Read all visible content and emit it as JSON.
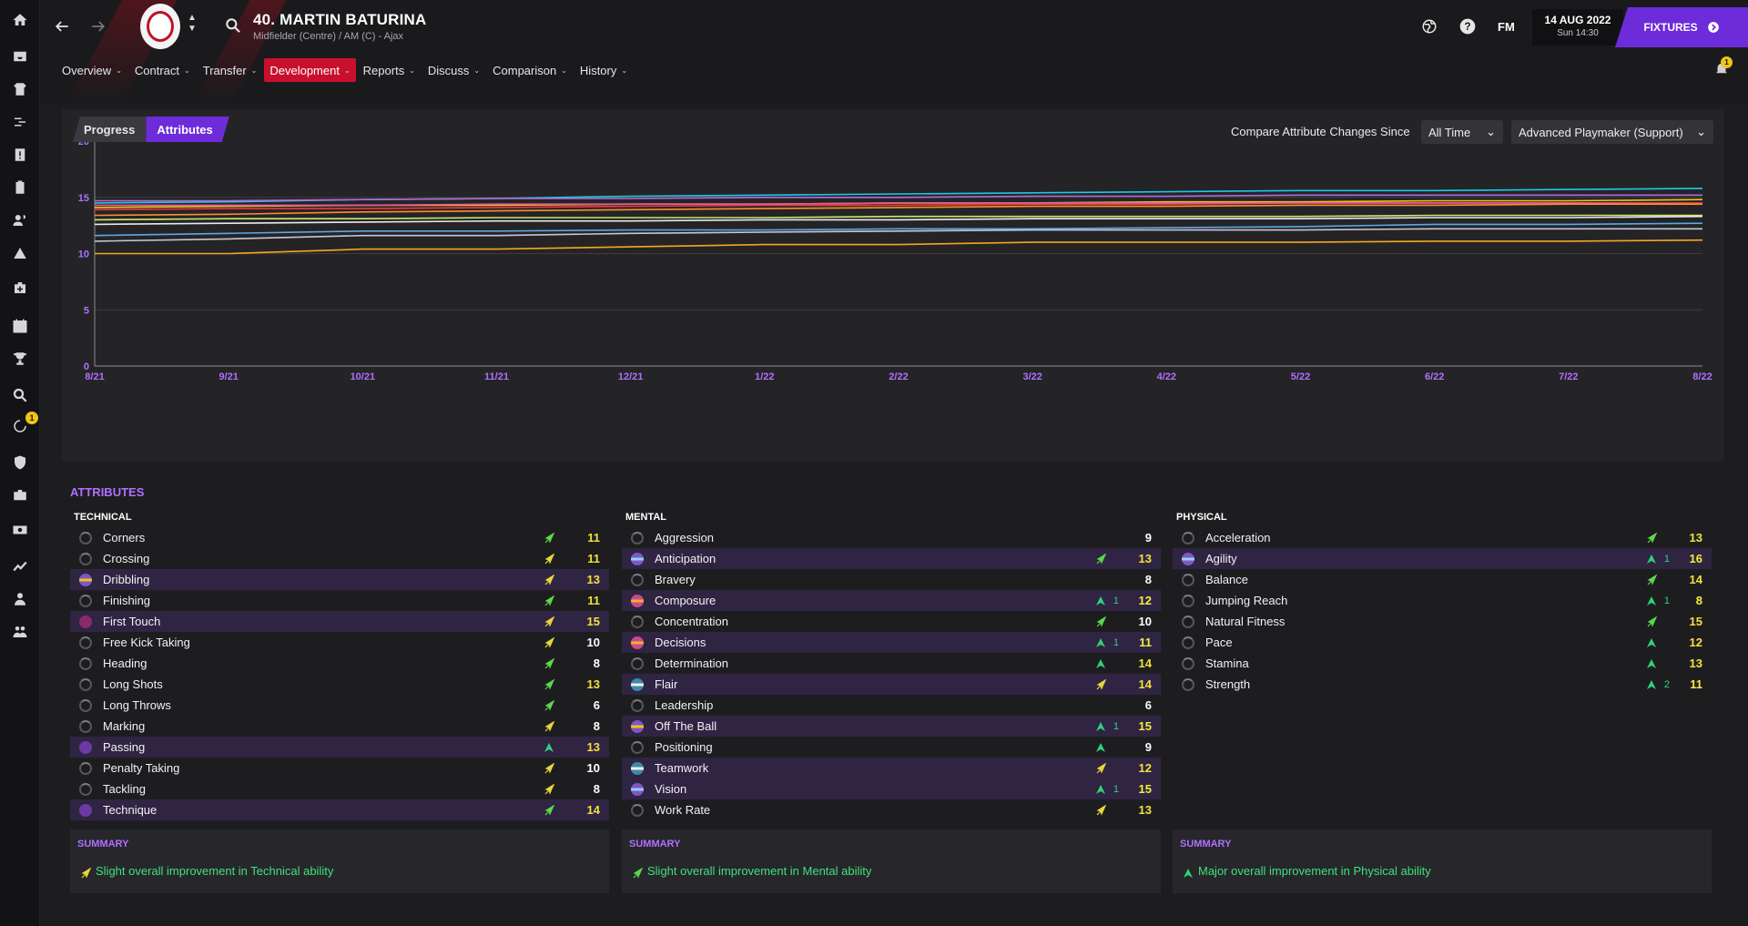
{
  "header": {
    "player_name": "40. MARTIN BATURINA",
    "player_subtitle": "Midfielder (Centre) / AM (C) - Ajax",
    "logo_label": "FM",
    "date": "14 AUG 2022",
    "time": "Sun 14:30",
    "fixtures_label": "FIXTURES",
    "notification_count": "1"
  },
  "sidebar": {
    "badge_count": "1"
  },
  "nav": [
    {
      "label": "Overview",
      "active": false
    },
    {
      "label": "Contract",
      "active": false
    },
    {
      "label": "Transfer",
      "active": false
    },
    {
      "label": "Development",
      "active": true
    },
    {
      "label": "Reports",
      "active": false
    },
    {
      "label": "Discuss",
      "active": false
    },
    {
      "label": "Comparison",
      "active": false
    },
    {
      "label": "History",
      "active": false
    }
  ],
  "panel": {
    "tab_progress": "Progress",
    "tab_attributes": "Attributes",
    "compare_label": "Compare Attribute Changes Since",
    "compare_value": "All Time",
    "role_value": "Advanced Playmaker (Support)"
  },
  "chart_data": {
    "type": "line",
    "x": [
      "8/21",
      "9/21",
      "10/21",
      "11/21",
      "12/21",
      "1/22",
      "2/22",
      "3/22",
      "4/22",
      "5/22",
      "6/22",
      "7/22",
      "8/22"
    ],
    "ylim": [
      0,
      20
    ],
    "yticks": [
      0,
      5,
      10,
      15,
      20
    ],
    "grid": true,
    "series": [
      {
        "color": "#1ec8e6",
        "values": [
          14.5,
          14.6,
          14.8,
          14.9,
          15.1,
          15.2,
          15.3,
          15.4,
          15.5,
          15.6,
          15.6,
          15.7,
          15.8
        ]
      },
      {
        "color": "#b36ad8",
        "values": [
          14.7,
          14.7,
          14.8,
          14.9,
          14.9,
          15.0,
          15.0,
          15.1,
          15.1,
          15.2,
          15.2,
          15.2,
          15.2
        ]
      },
      {
        "color": "#f0c419",
        "values": [
          14.1,
          14.2,
          14.3,
          14.3,
          14.4,
          14.4,
          14.5,
          14.5,
          14.6,
          14.6,
          14.7,
          14.7,
          14.8
        ]
      },
      {
        "color": "#e83c3c",
        "values": [
          13.9,
          14.0,
          14.0,
          14.1,
          14.2,
          14.3,
          14.3,
          14.4,
          14.4,
          14.5,
          14.5,
          14.5,
          14.5
        ]
      },
      {
        "color": "#e8589c",
        "values": [
          14.3,
          14.3,
          14.3,
          14.4,
          14.4,
          14.4,
          14.5,
          14.5,
          14.5,
          14.5,
          14.5,
          14.5,
          14.4
        ]
      },
      {
        "color": "#ff8c2e",
        "values": [
          13.4,
          13.5,
          13.7,
          13.8,
          13.9,
          14.0,
          14.1,
          14.2,
          14.2,
          14.3,
          14.3,
          14.4,
          14.4
        ]
      },
      {
        "color": "#c9e86b",
        "values": [
          13.0,
          13.1,
          13.1,
          13.2,
          13.2,
          13.2,
          13.3,
          13.3,
          13.3,
          13.3,
          13.4,
          13.4,
          13.4
        ]
      },
      {
        "color": "#e9e9ef",
        "values": [
          12.6,
          12.7,
          12.8,
          12.9,
          12.9,
          13.0,
          13.0,
          13.1,
          13.1,
          13.1,
          13.2,
          13.2,
          13.3
        ]
      },
      {
        "color": "#5aa8e6",
        "values": [
          11.6,
          11.8,
          12.0,
          12.0,
          12.1,
          12.1,
          12.2,
          12.2,
          12.3,
          12.4,
          12.6,
          12.6,
          12.7
        ]
      },
      {
        "color": "#c7c7d6",
        "values": [
          11.1,
          11.3,
          11.6,
          11.6,
          11.8,
          11.9,
          12.0,
          12.1,
          12.1,
          12.1,
          12.2,
          12.2,
          12.2
        ]
      },
      {
        "color": "#f5a623",
        "values": [
          10.0,
          10.0,
          10.4,
          10.4,
          10.6,
          10.8,
          10.8,
          11.0,
          11.0,
          11.0,
          11.1,
          11.1,
          11.2
        ]
      }
    ]
  },
  "attributes": {
    "title": "ATTRIBUTES",
    "columns": [
      {
        "heading": "TECHNICAL",
        "rows": [
          {
            "name": "Corners",
            "value": "11",
            "trend": "up-green",
            "change": "",
            "icon": "grey",
            "hl": false
          },
          {
            "name": "Crossing",
            "value": "11",
            "trend": "up-yellow",
            "change": "",
            "icon": "grey",
            "hl": false
          },
          {
            "name": "Dribbling",
            "value": "13",
            "trend": "up-yellow",
            "change": "",
            "icon": "striped",
            "hl": true
          },
          {
            "name": "Finishing",
            "value": "11",
            "trend": "up-green",
            "change": "",
            "icon": "grey",
            "hl": false
          },
          {
            "name": "First Touch",
            "value": "15",
            "trend": "up-yellow",
            "change": "",
            "icon": "mag",
            "hl": true
          },
          {
            "name": "Free Kick Taking",
            "value": "10",
            "trend": "up-yellow",
            "change": "",
            "icon": "grey",
            "hl": false
          },
          {
            "name": "Heading",
            "value": "8",
            "trend": "up-green",
            "change": "",
            "icon": "grey",
            "hl": false
          },
          {
            "name": "Long Shots",
            "value": "13",
            "trend": "up-green",
            "change": "",
            "icon": "grey",
            "hl": false
          },
          {
            "name": "Long Throws",
            "value": "6",
            "trend": "up-green",
            "change": "",
            "icon": "grey",
            "hl": false
          },
          {
            "name": "Marking",
            "value": "8",
            "trend": "up-yellow",
            "change": "",
            "icon": "grey",
            "hl": false
          },
          {
            "name": "Passing",
            "value": "13",
            "trend": "up-strong",
            "change": "",
            "icon": "purp",
            "hl": true
          },
          {
            "name": "Penalty Taking",
            "value": "10",
            "trend": "up-yellow",
            "change": "",
            "icon": "grey",
            "hl": false
          },
          {
            "name": "Tackling",
            "value": "8",
            "trend": "up-yellow",
            "change": "",
            "icon": "grey",
            "hl": false
          },
          {
            "name": "Technique",
            "value": "14",
            "trend": "up-green",
            "change": "",
            "icon": "purp",
            "hl": true
          }
        ],
        "summary_heading": "SUMMARY",
        "summary_text": "Slight overall improvement in Technical ability",
        "summary_trend": "up-yellow"
      },
      {
        "heading": "MENTAL",
        "rows": [
          {
            "name": "Aggression",
            "value": "9",
            "trend": "",
            "change": "",
            "icon": "grey",
            "hl": false
          },
          {
            "name": "Anticipation",
            "value": "13",
            "trend": "up-green",
            "change": "",
            "icon": "striped4",
            "hl": true
          },
          {
            "name": "Bravery",
            "value": "8",
            "trend": "",
            "change": "",
            "icon": "grey",
            "hl": false
          },
          {
            "name": "Composure",
            "value": "12",
            "trend": "up-strong",
            "change": "1",
            "icon": "striped2",
            "hl": true
          },
          {
            "name": "Concentration",
            "value": "10",
            "trend": "up-green",
            "change": "",
            "icon": "grey",
            "hl": false
          },
          {
            "name": "Decisions",
            "value": "11",
            "trend": "up-strong",
            "change": "1",
            "icon": "striped2",
            "hl": true
          },
          {
            "name": "Determination",
            "value": "14",
            "trend": "up-strong",
            "change": "",
            "icon": "grey",
            "hl": false
          },
          {
            "name": "Flair",
            "value": "14",
            "trend": "up-yellow",
            "change": "",
            "icon": "striped3",
            "hl": true
          },
          {
            "name": "Leadership",
            "value": "6",
            "trend": "",
            "change": "",
            "icon": "grey",
            "hl": false
          },
          {
            "name": "Off The Ball",
            "value": "15",
            "trend": "up-strong",
            "change": "1",
            "icon": "striped",
            "hl": true
          },
          {
            "name": "Positioning",
            "value": "9",
            "trend": "up-strong",
            "change": "",
            "icon": "grey",
            "hl": false
          },
          {
            "name": "Teamwork",
            "value": "12",
            "trend": "up-yellow",
            "change": "",
            "icon": "striped3",
            "hl": true
          },
          {
            "name": "Vision",
            "value": "15",
            "trend": "up-strong",
            "change": "1",
            "icon": "striped4",
            "hl": true
          },
          {
            "name": "Work Rate",
            "value": "13",
            "trend": "up-yellow",
            "change": "",
            "icon": "grey",
            "hl": false
          }
        ],
        "summary_heading": "SUMMARY",
        "summary_text": "Slight overall improvement in Mental ability",
        "summary_trend": "up-green"
      },
      {
        "heading": "PHYSICAL",
        "rows": [
          {
            "name": "Acceleration",
            "value": "13",
            "trend": "up-green",
            "change": "",
            "icon": "grey",
            "hl": false
          },
          {
            "name": "Agility",
            "value": "16",
            "trend": "up-strong",
            "change": "1",
            "icon": "striped4",
            "hl": true
          },
          {
            "name": "Balance",
            "value": "14",
            "trend": "up-green",
            "change": "",
            "icon": "grey",
            "hl": false
          },
          {
            "name": "Jumping Reach",
            "value": "8",
            "trend": "up-strong",
            "change": "1",
            "icon": "grey",
            "hl": false
          },
          {
            "name": "Natural Fitness",
            "value": "15",
            "trend": "up-green",
            "change": "",
            "icon": "grey",
            "hl": false
          },
          {
            "name": "Pace",
            "value": "12",
            "trend": "up-strong",
            "change": "",
            "icon": "grey",
            "hl": false
          },
          {
            "name": "Stamina",
            "value": "13",
            "trend": "up-strong",
            "change": "",
            "icon": "grey",
            "hl": false
          },
          {
            "name": "Strength",
            "value": "11",
            "trend": "up-strong",
            "change": "2",
            "icon": "grey",
            "hl": false
          }
        ],
        "summary_heading": "SUMMARY",
        "summary_text": "Major overall improvement in Physical ability",
        "summary_trend": "up-strong"
      }
    ]
  }
}
